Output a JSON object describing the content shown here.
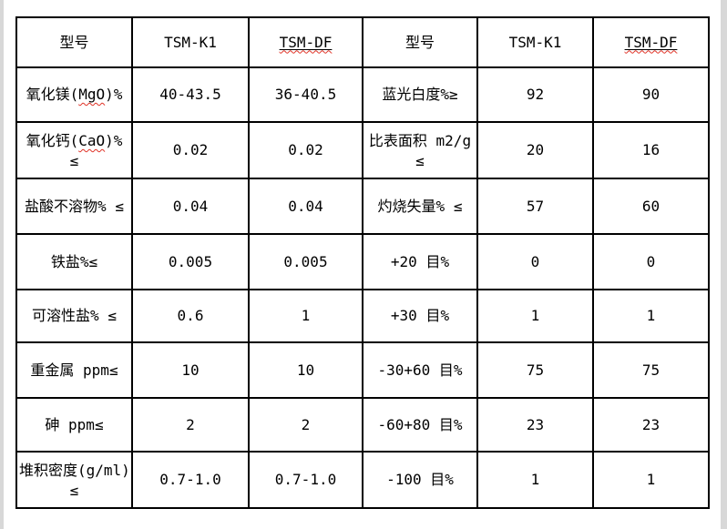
{
  "colors": {
    "page_background": "#ffffff",
    "gutter_gray": "#d8d8d8",
    "table_border": "#000000",
    "text": "#000000",
    "spellcheck_squiggle": "#e03226"
  },
  "table": {
    "header_row": {
      "cells": [
        {
          "parts": [
            {
              "t": "型号"
            }
          ]
        },
        {
          "parts": [
            {
              "t": "TSM-K1"
            }
          ]
        },
        {
          "parts": [
            {
              "t": "TSM-DF",
              "mark": "underline-squiggle"
            }
          ]
        },
        {
          "parts": [
            {
              "t": "型号"
            }
          ]
        },
        {
          "parts": [
            {
              "t": "TSM-K1"
            }
          ]
        },
        {
          "parts": [
            {
              "t": "TSM-DF",
              "mark": "underline-squiggle"
            }
          ]
        }
      ]
    },
    "body_rows": [
      {
        "cells": [
          {
            "parts": [
              {
                "t": "氧化镁("
              },
              {
                "t": "MgO",
                "mark": "squiggle"
              },
              {
                "t": ")%"
              }
            ]
          },
          {
            "parts": [
              {
                "t": "40-43.5"
              }
            ]
          },
          {
            "parts": [
              {
                "t": "36-40.5"
              }
            ]
          },
          {
            "parts": [
              {
                "t": "蓝光白度%≥"
              }
            ]
          },
          {
            "parts": [
              {
                "t": "92"
              }
            ]
          },
          {
            "parts": [
              {
                "t": "90"
              }
            ]
          }
        ]
      },
      {
        "cells": [
          {
            "parts": [
              {
                "t": "氧化钙("
              },
              {
                "t": "CaO",
                "mark": "squiggle"
              },
              {
                "t": ")%"
              }
            ],
            "line2": "≤"
          },
          {
            "parts": [
              {
                "t": "0.02"
              }
            ]
          },
          {
            "parts": [
              {
                "t": "0.02"
              }
            ]
          },
          {
            "parts": [
              {
                "t": "比表面积 m2/g"
              }
            ],
            "line2": "≤"
          },
          {
            "parts": [
              {
                "t": "20"
              }
            ]
          },
          {
            "parts": [
              {
                "t": "16"
              }
            ]
          }
        ]
      },
      {
        "cells": [
          {
            "parts": [
              {
                "t": "盐酸不溶物% ≤"
              }
            ]
          },
          {
            "parts": [
              {
                "t": "0.04"
              }
            ]
          },
          {
            "parts": [
              {
                "t": "0.04"
              }
            ]
          },
          {
            "parts": [
              {
                "t": "灼烧失量% ≤"
              }
            ]
          },
          {
            "parts": [
              {
                "t": "57"
              }
            ]
          },
          {
            "parts": [
              {
                "t": "60"
              }
            ]
          }
        ]
      },
      {
        "cells": [
          {
            "parts": [
              {
                "t": "铁盐%≤"
              }
            ]
          },
          {
            "parts": [
              {
                "t": "0.005"
              }
            ]
          },
          {
            "parts": [
              {
                "t": "0.005"
              }
            ]
          },
          {
            "parts": [
              {
                "t": "+20 目%"
              }
            ]
          },
          {
            "parts": [
              {
                "t": "0"
              }
            ]
          },
          {
            "parts": [
              {
                "t": "0"
              }
            ]
          }
        ]
      },
      {
        "cells": [
          {
            "parts": [
              {
                "t": "可溶性盐% ≤"
              }
            ]
          },
          {
            "parts": [
              {
                "t": "0.6"
              }
            ]
          },
          {
            "parts": [
              {
                "t": "1"
              }
            ]
          },
          {
            "parts": [
              {
                "t": "+30 目%"
              }
            ]
          },
          {
            "parts": [
              {
                "t": "1"
              }
            ]
          },
          {
            "parts": [
              {
                "t": "1"
              }
            ]
          }
        ]
      },
      {
        "cells": [
          {
            "parts": [
              {
                "t": "重金属 ppm≤"
              }
            ]
          },
          {
            "parts": [
              {
                "t": "10"
              }
            ]
          },
          {
            "parts": [
              {
                "t": "10"
              }
            ]
          },
          {
            "parts": [
              {
                "t": "-30+60 目%"
              }
            ]
          },
          {
            "parts": [
              {
                "t": "75"
              }
            ]
          },
          {
            "parts": [
              {
                "t": "75"
              }
            ]
          }
        ]
      },
      {
        "cells": [
          {
            "parts": [
              {
                "t": "砷 ppm≤"
              }
            ]
          },
          {
            "parts": [
              {
                "t": "2"
              }
            ]
          },
          {
            "parts": [
              {
                "t": "2"
              }
            ]
          },
          {
            "parts": [
              {
                "t": "-60+80 目%"
              }
            ]
          },
          {
            "parts": [
              {
                "t": "23"
              }
            ]
          },
          {
            "parts": [
              {
                "t": "23"
              }
            ]
          }
        ]
      },
      {
        "cells": [
          {
            "parts": [
              {
                "t": "堆积密度(g/ml)"
              }
            ],
            "line2": "≤"
          },
          {
            "parts": [
              {
                "t": "0.7-1.0"
              }
            ]
          },
          {
            "parts": [
              {
                "t": "0.7-1.0"
              }
            ]
          },
          {
            "parts": [
              {
                "t": "-100 目%"
              }
            ]
          },
          {
            "parts": [
              {
                "t": "1"
              }
            ]
          },
          {
            "parts": [
              {
                "t": "1"
              }
            ]
          }
        ]
      }
    ]
  }
}
